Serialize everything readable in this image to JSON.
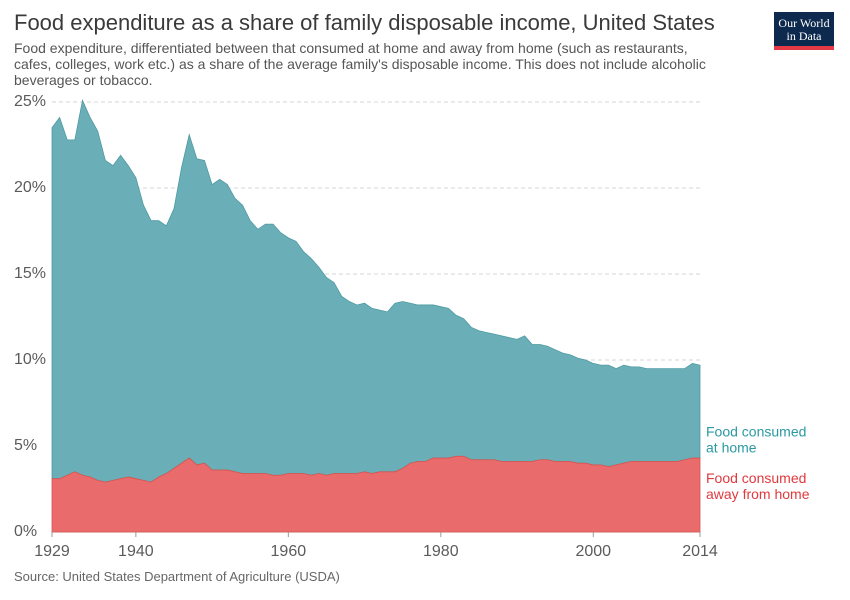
{
  "title": "Food expenditure as a share of family disposable income, United States",
  "subtitle": "Food expenditure, differentiated between that consumed at home and away from home (such as restaurants, cafes, colleges, work etc.) as a share of the average family's disposable income. This does not include alcoholic beverages or tobacco.",
  "logo": {
    "line1": "Our World",
    "line2": "in Data"
  },
  "source": "Source: United States Department of Agriculture (USDA)",
  "colors": {
    "home": "#6aafb7",
    "away": "#ea6b6b",
    "home_label": "#2b9aa2",
    "away_label": "#e0393e",
    "grid": "#d6d6d6"
  },
  "chart_data": {
    "type": "area",
    "stacked": true,
    "xlim": [
      1929,
      2014
    ],
    "ylim": [
      0,
      25
    ],
    "y_ticks": [
      "0%",
      "5%",
      "10%",
      "15%",
      "20%",
      "25%"
    ],
    "x_ticks": [
      "1929",
      "1940",
      "1960",
      "1980",
      "2000",
      "2014"
    ],
    "grid": true,
    "legend": "inline-right",
    "x": [
      1929,
      1930,
      1931,
      1932,
      1933,
      1934,
      1935,
      1936,
      1937,
      1938,
      1939,
      1940,
      1941,
      1942,
      1943,
      1944,
      1945,
      1946,
      1947,
      1948,
      1949,
      1950,
      1951,
      1952,
      1953,
      1954,
      1955,
      1956,
      1957,
      1958,
      1959,
      1960,
      1961,
      1962,
      1963,
      1964,
      1965,
      1966,
      1967,
      1968,
      1969,
      1970,
      1971,
      1972,
      1973,
      1974,
      1975,
      1976,
      1977,
      1978,
      1979,
      1980,
      1981,
      1982,
      1983,
      1984,
      1985,
      1986,
      1987,
      1988,
      1989,
      1990,
      1991,
      1992,
      1993,
      1994,
      1995,
      1996,
      1997,
      1998,
      1999,
      2000,
      2001,
      2002,
      2003,
      2004,
      2005,
      2006,
      2007,
      2008,
      2009,
      2010,
      2011,
      2012,
      2013,
      2014
    ],
    "series": [
      {
        "name": "Food consumed away from home",
        "values": [
          3.1,
          3.1,
          3.3,
          3.5,
          3.3,
          3.2,
          3.0,
          2.9,
          3.0,
          3.1,
          3.2,
          3.1,
          3.0,
          2.9,
          3.2,
          3.4,
          3.7,
          4.0,
          4.3,
          3.9,
          4.0,
          3.6,
          3.6,
          3.6,
          3.5,
          3.4,
          3.4,
          3.4,
          3.4,
          3.3,
          3.3,
          3.4,
          3.4,
          3.4,
          3.3,
          3.4,
          3.3,
          3.4,
          3.4,
          3.4,
          3.4,
          3.5,
          3.4,
          3.5,
          3.5,
          3.5,
          3.7,
          4.0,
          4.1,
          4.1,
          4.3,
          4.3,
          4.3,
          4.4,
          4.4,
          4.2,
          4.2,
          4.2,
          4.2,
          4.1,
          4.1,
          4.1,
          4.1,
          4.1,
          4.2,
          4.2,
          4.1,
          4.1,
          4.1,
          4.0,
          4.0,
          3.9,
          3.9,
          3.8,
          3.9,
          4.0,
          4.1,
          4.1,
          4.1,
          4.1,
          4.1,
          4.1,
          4.1,
          4.2,
          4.3,
          4.3
        ]
      },
      {
        "name": "Food consumed at home",
        "values": [
          20.4,
          21.0,
          19.5,
          19.3,
          21.8,
          20.9,
          20.3,
          18.7,
          18.3,
          18.8,
          18.1,
          17.5,
          16.0,
          15.2,
          14.9,
          14.4,
          15.1,
          17.2,
          18.8,
          17.8,
          17.6,
          16.6,
          16.9,
          16.6,
          15.9,
          15.6,
          14.7,
          14.2,
          14.5,
          14.6,
          14.1,
          13.7,
          13.5,
          12.9,
          12.6,
          12.0,
          11.5,
          11.1,
          10.3,
          10.0,
          9.8,
          9.8,
          9.6,
          9.4,
          9.3,
          9.8,
          9.7,
          9.3,
          9.1,
          9.1,
          8.9,
          8.8,
          8.7,
          8.2,
          8.0,
          7.7,
          7.5,
          7.4,
          7.3,
          7.3,
          7.2,
          7.1,
          7.3,
          6.8,
          6.7,
          6.6,
          6.5,
          6.3,
          6.2,
          6.1,
          6.0,
          5.9,
          5.8,
          5.9,
          5.6,
          5.7,
          5.5,
          5.5,
          5.4,
          5.4,
          5.4,
          5.4,
          5.4,
          5.3,
          5.5,
          5.4
        ]
      }
    ],
    "series_labels": {
      "home": [
        "Food consumed",
        "at home"
      ],
      "away": [
        "Food consumed",
        "away from home"
      ]
    }
  }
}
